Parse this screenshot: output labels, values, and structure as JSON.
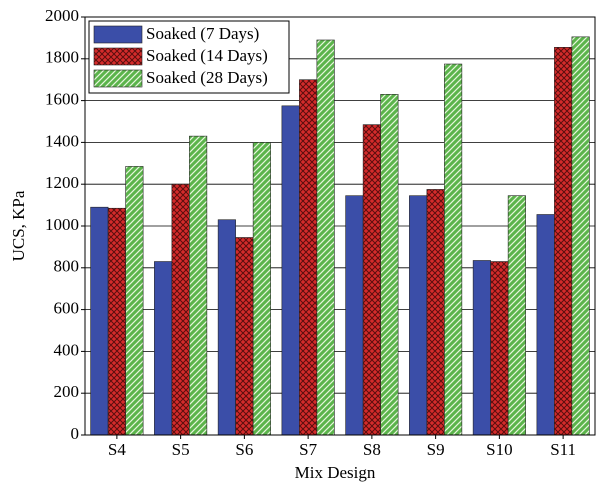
{
  "chart_data": {
    "type": "bar",
    "x_label": "Mix Design",
    "y_label": "UCS, KPa",
    "categories": [
      "S4",
      "S5",
      "S6",
      "S7",
      "S8",
      "S9",
      "S10",
      "S11"
    ],
    "series": [
      {
        "name": "Soaked (7 Days)",
        "color": "#3b4ea8",
        "hatch": "none",
        "values": [
          1090,
          830,
          1030,
          1575,
          1145,
          1145,
          835,
          1055
        ]
      },
      {
        "name": "Soaked (14 Days)",
        "color": "#d42b2b",
        "hatch": "cross",
        "values": [
          1085,
          1200,
          945,
          1700,
          1485,
          1175,
          830,
          1855
        ]
      },
      {
        "name": "Soaked (28 Days)",
        "color": "#5bb44b",
        "hatch": "diagonal",
        "values": [
          1285,
          1430,
          1400,
          1890,
          1630,
          1775,
          1145,
          1905
        ]
      }
    ],
    "ylim": [
      0,
      2000
    ],
    "yticks": [
      0,
      200,
      400,
      600,
      800,
      1000,
      1200,
      1400,
      1600,
      1800,
      2000
    ],
    "grid": true,
    "legend": "upper-left"
  }
}
